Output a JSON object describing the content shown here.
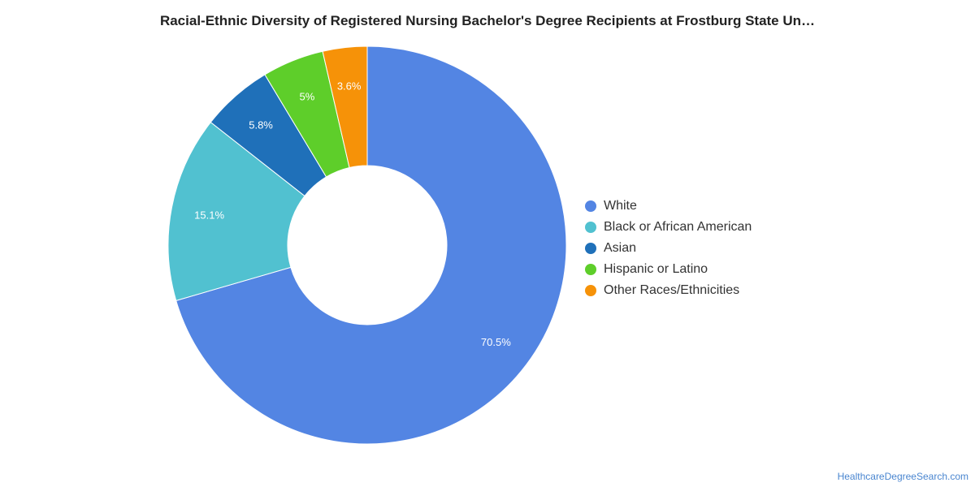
{
  "chart_data": {
    "type": "pie",
    "title": "Racial-Ethnic Diversity of Registered Nursing Bachelor's Degree Recipients at Frostburg State Un…",
    "donut": true,
    "legend_position": "right",
    "categories": [
      "White",
      "Black or African American",
      "Asian",
      "Hispanic or Latino",
      "Other Races/Ethnicities"
    ],
    "values": [
      70.5,
      15.1,
      5.8,
      5.0,
      3.6
    ],
    "data_labels": [
      "70.5%",
      "15.1%",
      "5.8%",
      "5%",
      "3.6%"
    ],
    "colors": [
      "#5385e3",
      "#51c1d0",
      "#1f70b9",
      "#5ece2a",
      "#f69208"
    ]
  },
  "source": "HealthcareDegreeSearch.com"
}
